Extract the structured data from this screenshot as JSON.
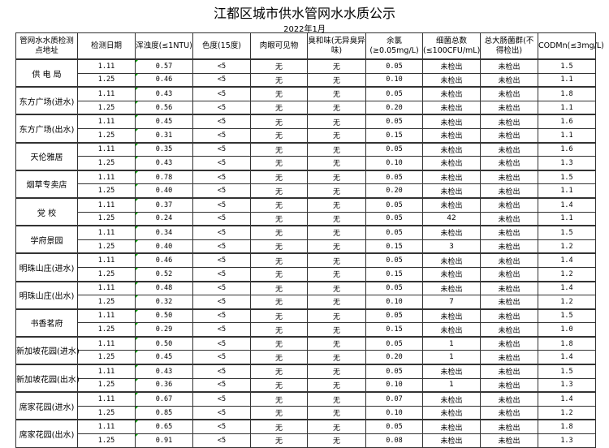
{
  "title": "江都区城市供水管网水水质公示",
  "date": "2022年1月",
  "columns": [
    "管网水水质检测点地址",
    "检测日期",
    "浑浊度(≤1NTU)",
    "色度(15度)",
    "肉眼可见物",
    "臭和味(无异臭异味)",
    "余氯(≥0.05mg/L)",
    "细菌总数(≤100CFU/mL)",
    "总大肠菌群(不得检出)",
    "CODMn(≤3mg/L)"
  ],
  "sites": [
    {
      "name": "供 电 局",
      "rows": [
        [
          "1.11",
          "0.57",
          "<5",
          "无",
          "无",
          "0.05",
          "未检出",
          "未检出",
          "1.5"
        ],
        [
          "1.25",
          "0.46",
          "<5",
          "无",
          "无",
          "0.10",
          "未检出",
          "未检出",
          "1.1"
        ]
      ]
    },
    {
      "name": "东方广场(进水)",
      "rows": [
        [
          "1.11",
          "0.43",
          "<5",
          "无",
          "无",
          "0.05",
          "未检出",
          "未检出",
          "1.8"
        ],
        [
          "1.25",
          "0.56",
          "<5",
          "无",
          "无",
          "0.20",
          "未检出",
          "未检出",
          "1.1"
        ]
      ]
    },
    {
      "name": "东方广场(出水)",
      "rows": [
        [
          "1.11",
          "0.45",
          "<5",
          "无",
          "无",
          "0.05",
          "未检出",
          "未检出",
          "1.6"
        ],
        [
          "1.25",
          "0.31",
          "<5",
          "无",
          "无",
          "0.15",
          "未检出",
          "未检出",
          "1.1"
        ]
      ]
    },
    {
      "name": "天伦雅居",
      "rows": [
        [
          "1.11",
          "0.35",
          "<5",
          "无",
          "无",
          "0.05",
          "未检出",
          "未检出",
          "1.6"
        ],
        [
          "1.25",
          "0.43",
          "<5",
          "无",
          "无",
          "0.10",
          "未检出",
          "未检出",
          "1.3"
        ]
      ]
    },
    {
      "name": "烟草专卖店",
      "rows": [
        [
          "1.11",
          "0.78",
          "<5",
          "无",
          "无",
          "0.05",
          "未检出",
          "未检出",
          "1.5"
        ],
        [
          "1.25",
          "0.40",
          "<5",
          "无",
          "无",
          "0.20",
          "未检出",
          "未检出",
          "1.1"
        ]
      ]
    },
    {
      "name": "党  校",
      "rows": [
        [
          "1.11",
          "0.37",
          "<5",
          "无",
          "无",
          "0.05",
          "未检出",
          "未检出",
          "1.4"
        ],
        [
          "1.25",
          "0.24",
          "<5",
          "无",
          "无",
          "0.05",
          "42",
          "未检出",
          "1.1"
        ]
      ]
    },
    {
      "name": "学府景园",
      "rows": [
        [
          "1.11",
          "0.34",
          "<5",
          "无",
          "无",
          "0.05",
          "未检出",
          "未检出",
          "1.5"
        ],
        [
          "1.25",
          "0.40",
          "<5",
          "无",
          "无",
          "0.15",
          "3",
          "未检出",
          "1.2"
        ]
      ]
    },
    {
      "name": "明珠山庄(进水)",
      "rows": [
        [
          "1.11",
          "0.46",
          "<5",
          "无",
          "无",
          "0.05",
          "未检出",
          "未检出",
          "1.4"
        ],
        [
          "1.25",
          "0.52",
          "<5",
          "无",
          "无",
          "0.15",
          "未检出",
          "未检出",
          "1.2"
        ]
      ]
    },
    {
      "name": "明珠山庄(出水)",
      "rows": [
        [
          "1.11",
          "0.48",
          "<5",
          "无",
          "无",
          "0.05",
          "未检出",
          "未检出",
          "1.4"
        ],
        [
          "1.25",
          "0.32",
          "<5",
          "无",
          "无",
          "0.10",
          "7",
          "未检出",
          "1.2"
        ]
      ]
    },
    {
      "name": "书香茗府",
      "rows": [
        [
          "1.11",
          "0.50",
          "<5",
          "无",
          "无",
          "0.05",
          "未检出",
          "未检出",
          "1.5"
        ],
        [
          "1.25",
          "0.29",
          "<5",
          "无",
          "无",
          "0.15",
          "未检出",
          "未检出",
          "1.0"
        ]
      ]
    },
    {
      "name": "新加坡花园(进水)",
      "rows": [
        [
          "1.11",
          "0.50",
          "<5",
          "无",
          "无",
          "0.05",
          "1",
          "未检出",
          "1.8"
        ],
        [
          "1.25",
          "0.45",
          "<5",
          "无",
          "无",
          "0.20",
          "1",
          "未检出",
          "1.4"
        ]
      ]
    },
    {
      "name": "新加坡花园(出水)",
      "rows": [
        [
          "1.11",
          "0.43",
          "<5",
          "无",
          "无",
          "0.05",
          "未检出",
          "未检出",
          "1.5"
        ],
        [
          "1.25",
          "0.36",
          "<5",
          "无",
          "无",
          "0.10",
          "1",
          "未检出",
          "1.3"
        ]
      ]
    },
    {
      "name": "席家花园(进水)",
      "rows": [
        [
          "1.11",
          "0.67",
          "<5",
          "无",
          "无",
          "0.07",
          "未检出",
          "未检出",
          "1.4"
        ],
        [
          "1.25",
          "0.85",
          "<5",
          "无",
          "无",
          "0.10",
          "未检出",
          "未检出",
          "1.2"
        ]
      ]
    },
    {
      "name": "席家花园(出水)",
      "rows": [
        [
          "1.11",
          "0.65",
          "<5",
          "无",
          "无",
          "0.05",
          "未检出",
          "未检出",
          "1.8"
        ],
        [
          "1.25",
          "0.91",
          "<5",
          "无",
          "无",
          "0.08",
          "未检出",
          "未检出",
          "1.3"
        ]
      ]
    }
  ]
}
